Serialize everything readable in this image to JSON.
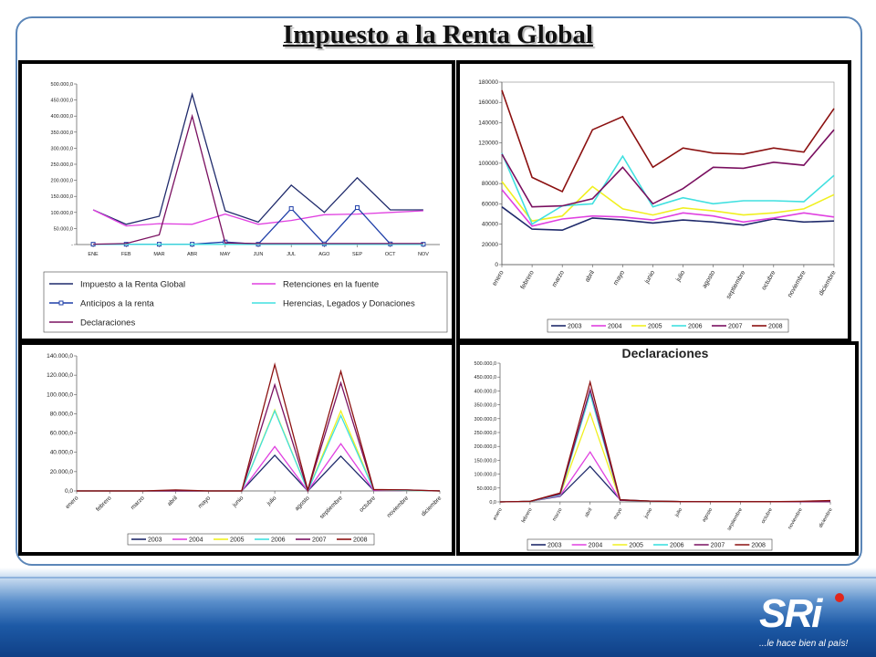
{
  "slide": {
    "title": "Impuesto  a la Renta Global",
    "logo_text": "SRi",
    "tagline": "...le hace bien al país!"
  },
  "colors": {
    "frame": "#5b86b8",
    "band_top": "#5a8fcb",
    "band_bottom": "#0f3f86"
  },
  "chart_data": [
    {
      "type": "line",
      "categories": [
        "ENE",
        "FEB",
        "MAR",
        "ABR",
        "MAY",
        "JUN",
        "JUL",
        "AGO",
        "SEP",
        "OCT",
        "NOV"
      ],
      "y_ticks": [
        "-",
        "50.000,0",
        "100.000,0",
        "150.000,0",
        "200.000,0",
        "250.000,0",
        "300.000,0",
        "350.000,0",
        "400.000,0",
        "450.000,0",
        "500.000,0"
      ],
      "ylim": [
        0,
        500000
      ],
      "series": [
        {
          "name": "Impuesto a la Renta Global",
          "color": "#1f2a6b",
          "marker": false,
          "values": [
            108000,
            63000,
            88000,
            468000,
            105000,
            70000,
            185000,
            100000,
            208000,
            108000,
            108000
          ]
        },
        {
          "name": "Retenciones en la fuente",
          "color": "#e040e0",
          "marker": false,
          "values": [
            108000,
            58000,
            65000,
            63000,
            95000,
            63000,
            75000,
            93000,
            95000,
            100000,
            105000
          ]
        },
        {
          "name": "Anticipos a la renta",
          "color": "#1f3fa8",
          "marker": true,
          "values": [
            1000,
            1000,
            1000,
            1000,
            8000,
            1000,
            112000,
            2000,
            115000,
            2000,
            1000
          ]
        },
        {
          "name": "Herencias, Legados y Donaciones",
          "color": "#40e0e0",
          "marker": false,
          "values": [
            500,
            500,
            500,
            500,
            500,
            500,
            500,
            500,
            500,
            500,
            500
          ]
        },
        {
          "name": "Declaraciones",
          "color": "#7a1060",
          "marker": false,
          "values": [
            1000,
            3000,
            30000,
            400000,
            5000,
            3000,
            3000,
            3000,
            3000,
            3000,
            3000
          ]
        }
      ]
    },
    {
      "type": "line",
      "categories": [
        "enero",
        "febrero",
        "marzo",
        "abril",
        "mayo",
        "junio",
        "julio",
        "agosto",
        "septiembre",
        "octubre",
        "noviembre",
        "diciembre"
      ],
      "y_ticks": [
        "0",
        "20000",
        "40000",
        "60000",
        "80000",
        "100000",
        "120000",
        "140000",
        "160000",
        "180000"
      ],
      "ylim": [
        0,
        180000
      ],
      "series": [
        {
          "name": "2003",
          "color": "#1f2a6b",
          "values": [
            57000,
            35000,
            34000,
            46000,
            44000,
            41000,
            44000,
            42000,
            39000,
            45000,
            42000,
            43000
          ]
        },
        {
          "name": "2004",
          "color": "#e040e0",
          "values": [
            74000,
            38000,
            45000,
            48000,
            47000,
            44000,
            51000,
            48000,
            42000,
            46000,
            51000,
            47000
          ]
        },
        {
          "name": "2005",
          "color": "#f0f020",
          "values": [
            82000,
            43000,
            48000,
            77000,
            55000,
            49000,
            56000,
            53000,
            49000,
            51000,
            55000,
            69000
          ]
        },
        {
          "name": "2006",
          "color": "#40e0e0",
          "values": [
            110000,
            40000,
            58000,
            60000,
            107000,
            57000,
            66000,
            60000,
            63000,
            63000,
            62000,
            88000
          ]
        },
        {
          "name": "2007",
          "color": "#7a1060",
          "values": [
            109000,
            57000,
            58000,
            65000,
            96000,
            60000,
            75000,
            96000,
            95000,
            101000,
            98000,
            133000
          ]
        },
        {
          "name": "2008",
          "color": "#8b1010",
          "values": [
            172000,
            86000,
            72000,
            133000,
            146000,
            96000,
            115000,
            110000,
            109000,
            115000,
            111000,
            154000
          ]
        }
      ]
    },
    {
      "type": "line",
      "categories": [
        "enero",
        "febrero",
        "marzo",
        "abril",
        "mayo",
        "junio",
        "julio",
        "agosto",
        "septiembre",
        "octubre",
        "noviembre",
        "diciembre"
      ],
      "y_ticks": [
        "0,0",
        "20.000,0",
        "40.000,0",
        "60.000,0",
        "80.000,0",
        "100.000,0",
        "120.000,0",
        "140.000,0"
      ],
      "ylim": [
        0,
        140000
      ],
      "series": [
        {
          "name": "2003",
          "color": "#1f2a6b",
          "values": [
            0,
            0,
            0,
            0,
            0,
            0,
            37000,
            0,
            36000,
            500,
            500,
            0
          ]
        },
        {
          "name": "2004",
          "color": "#e040e0",
          "values": [
            0,
            0,
            0,
            0,
            0,
            0,
            46000,
            0,
            49000,
            500,
            500,
            0
          ]
        },
        {
          "name": "2005",
          "color": "#f0f020",
          "values": [
            0,
            0,
            0,
            0,
            0,
            0,
            84000,
            0,
            83000,
            1000,
            500,
            0
          ]
        },
        {
          "name": "2006",
          "color": "#40e0e0",
          "values": [
            0,
            0,
            0,
            0,
            0,
            0,
            83000,
            0,
            78000,
            1000,
            500,
            0
          ]
        },
        {
          "name": "2007",
          "color": "#7a1060",
          "values": [
            0,
            0,
            0,
            0,
            0,
            0,
            110000,
            0,
            112000,
            1000,
            1000,
            0
          ]
        },
        {
          "name": "2008",
          "color": "#8b1010",
          "values": [
            0,
            0,
            0,
            1000,
            0,
            0,
            131000,
            1000,
            124000,
            1500,
            1000,
            0
          ]
        }
      ]
    },
    {
      "type": "line",
      "title": "Declaraciones",
      "categories": [
        "enero",
        "febrero",
        "marzo",
        "abril",
        "mayo",
        "junio",
        "julio",
        "agosto",
        "septiembre",
        "octubre",
        "noviembre",
        "diciembre"
      ],
      "y_ticks": [
        "0,0",
        "50.000,0",
        "100.000,0",
        "150.000,0",
        "200.000,0",
        "250.000,0",
        "300.000,0",
        "350.000,0",
        "400.000,0",
        "450.000,0",
        "500.000,0"
      ],
      "ylim": [
        0,
        500000
      ],
      "series": [
        {
          "name": "2003",
          "color": "#1f2a6b",
          "values": [
            0,
            2000,
            20000,
            128000,
            8000,
            3000,
            1000,
            500,
            500,
            500,
            500,
            500
          ]
        },
        {
          "name": "2004",
          "color": "#e040e0",
          "values": [
            0,
            2000,
            22000,
            180000,
            6000,
            3000,
            1000,
            500,
            500,
            500,
            500,
            500
          ]
        },
        {
          "name": "2005",
          "color": "#f0f020",
          "values": [
            0,
            2000,
            25000,
            320000,
            6000,
            3000,
            1000,
            500,
            500,
            500,
            500,
            500
          ]
        },
        {
          "name": "2006",
          "color": "#40e0e0",
          "values": [
            0,
            2000,
            25000,
            390000,
            6000,
            3000,
            1000,
            500,
            500,
            500,
            500,
            500
          ]
        },
        {
          "name": "2007",
          "color": "#7a1060",
          "values": [
            0,
            2000,
            28000,
            405000,
            6000,
            3000,
            1000,
            500,
            500,
            500,
            500,
            500
          ]
        },
        {
          "name": "2008",
          "color": "#8b1010",
          "values": [
            0,
            2000,
            32000,
            432000,
            8000,
            3000,
            1000,
            500,
            500,
            500,
            2000,
            5000
          ]
        }
      ]
    }
  ]
}
